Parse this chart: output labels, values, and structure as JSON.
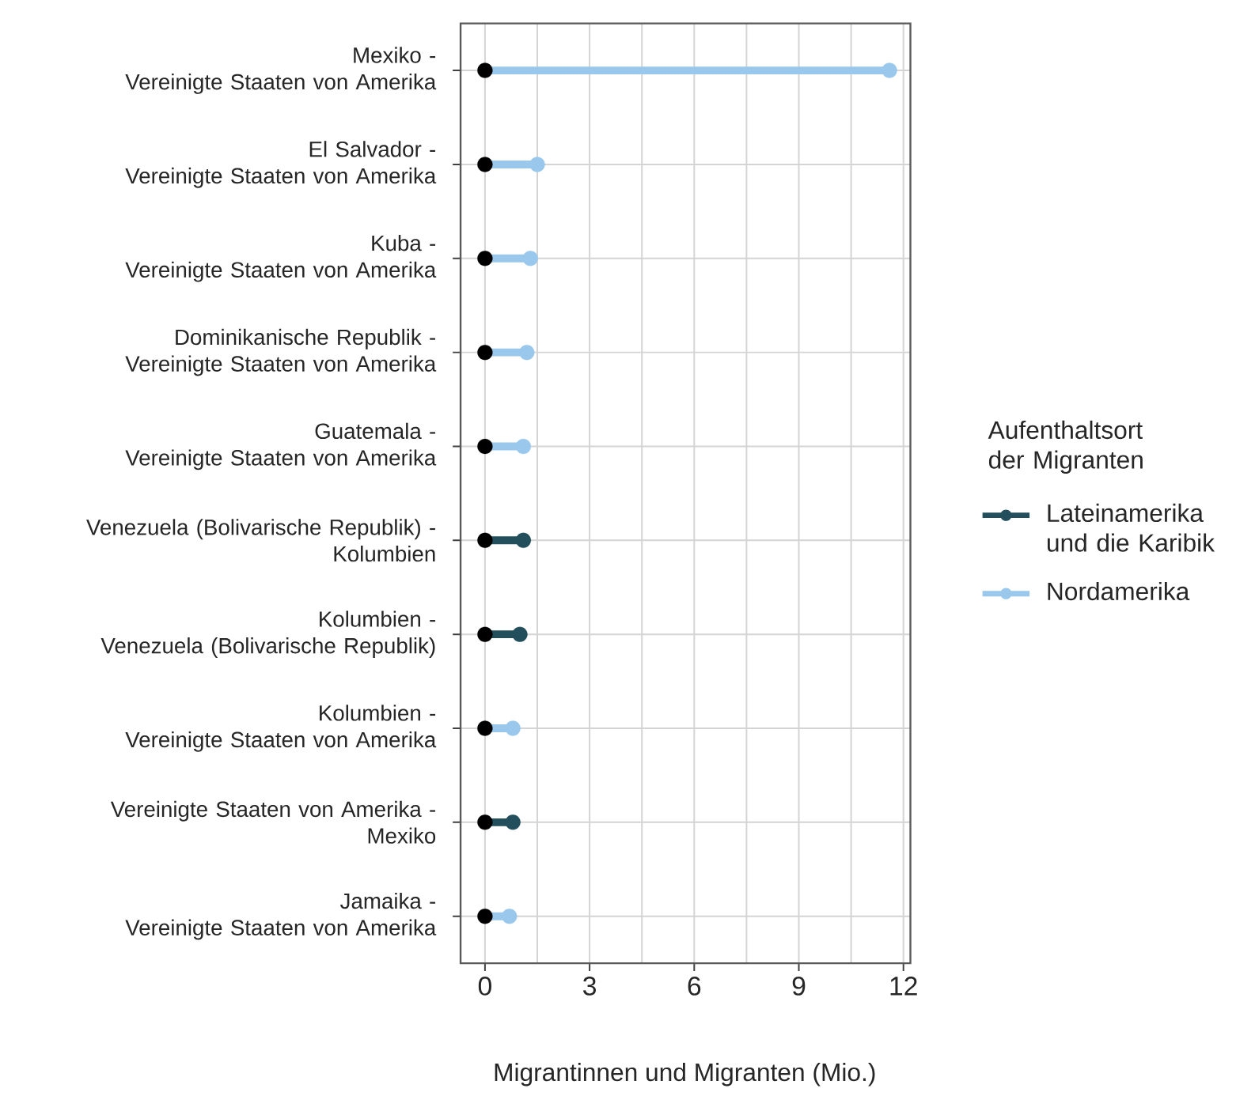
{
  "chart_data": {
    "type": "lollipop",
    "categories": [
      "Mexiko - Vereinigte Staaten von Amerika",
      "El Salvador - Vereinigte Staaten von Amerika",
      "Kuba - Vereinigte Staaten von Amerika",
      "Dominikanische Republik - Vereinigte Staaten von Amerika",
      "Guatemala - Vereinigte Staaten von Amerika",
      "Venezuela (Bolivarische Republik) - Kolumbien",
      "Kolumbien - Venezuela (Bolivarische Republik)",
      "Kolumbien - Vereinigte Staaten von Amerika",
      "Vereinigte Staaten von Amerika - Mexiko",
      "Jamaika - Vereinigte Staaten von Amerika"
    ],
    "series": [
      {
        "name": "Lateinamerika und die Karibik",
        "color": "#224f5b",
        "values": [
          null,
          null,
          null,
          null,
          null,
          1.1,
          1.0,
          null,
          0.8,
          null
        ]
      },
      {
        "name": "Nordamerika",
        "color": "#99c8ec",
        "values": [
          11.6,
          1.5,
          1.3,
          1.2,
          1.1,
          null,
          null,
          0.8,
          null,
          0.7
        ]
      },
      {
        "type": "scatter",
        "color": "#000000",
        "values": [
          0,
          0,
          0,
          0,
          0,
          0,
          0,
          0,
          0,
          0
        ]
      }
    ],
    "xlabel": "Migrantinnen und Migranten (Mio.)",
    "legend_title": "Aufenthaltsort der Migranten",
    "xlim": [
      -0.7,
      12.2
    ],
    "xticks": [
      0,
      3,
      6,
      9,
      12
    ],
    "grid": true,
    "legend": "right",
    "orientation": "horizontal",
    "marker": "circle"
  }
}
